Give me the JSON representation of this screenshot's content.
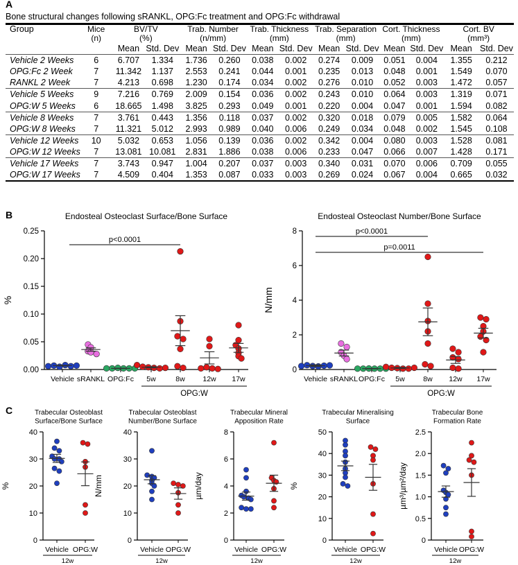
{
  "panel_labels": {
    "a": "A",
    "b": "B",
    "c": "C"
  },
  "table": {
    "caption": "Bone structural changes following sRANKL, OPG:Fc treatment and OPG:Fc withdrawal",
    "headers": {
      "group": "Group",
      "mice": "Mice",
      "mice_unit": "(n)",
      "bvtv": "BV/TV",
      "bvtv_unit": "(%)",
      "tbn": "Trab. Number",
      "tbn_unit": "(n/mm)",
      "tbth": "Trab. Thickness",
      "tbth_unit": "(mm)",
      "tbsp": "Trab. Separation",
      "tbsp_unit": "(mm)",
      "ctth": "Cort. Thickness",
      "ctth_unit": "(mm)",
      "ctbv": "Cort. BV",
      "ctbv_unit": "(mm³)"
    },
    "sub_mean": "Mean",
    "sub_sd": "Std. Dev",
    "rows": [
      {
        "group": "Vehicle 2 Weeks",
        "n": "6",
        "v": [
          "6.707",
          "1.334",
          "1.736",
          "0.260",
          "0.038",
          "0.002",
          "0.274",
          "0.009",
          "0.051",
          "0.004",
          "1.355",
          "0.212"
        ]
      },
      {
        "group": "OPG:Fc 2 Week",
        "n": "7",
        "v": [
          "11.342",
          "1.137",
          "2.553",
          "0.241",
          "0.044",
          "0.001",
          "0.235",
          "0.013",
          "0.048",
          "0.001",
          "1.549",
          "0.070"
        ]
      },
      {
        "group": "RANKL 2 Week",
        "n": "7",
        "v": [
          "4.213",
          "0.698",
          "1.230",
          "0.174",
          "0.034",
          "0.002",
          "0.276",
          "0.010",
          "0.052",
          "0.003",
          "1.472",
          "0.057"
        ]
      },
      {
        "group": "Vehicle 5 Weeks",
        "n": "9",
        "v": [
          "7.216",
          "0.769",
          "2.009",
          "0.154",
          "0.036",
          "0.002",
          "0.243",
          "0.010",
          "0.064",
          "0.003",
          "1.319",
          "0.071"
        ]
      },
      {
        "group": "OPG:W 5 Weeks",
        "n": "6",
        "v": [
          "18.665",
          "1.498",
          "3.825",
          "0.293",
          "0.049",
          "0.001",
          "0.220",
          "0.004",
          "0.047",
          "0.001",
          "1.594",
          "0.082"
        ]
      },
      {
        "group": "Vehicle 8 Weeks",
        "n": "7",
        "v": [
          "3.761",
          "0.443",
          "1.356",
          "0.118",
          "0.037",
          "0.002",
          "0.320",
          "0.018",
          "0.079",
          "0.005",
          "1.582",
          "0.064"
        ]
      },
      {
        "group": "OPG:W 8 Weeks",
        "n": "7",
        "v": [
          "11.321",
          "5.012",
          "2.993",
          "0.989",
          "0.040",
          "0.006",
          "0.249",
          "0.034",
          "0.048",
          "0.002",
          "1.545",
          "0.108"
        ]
      },
      {
        "group": "Vehicle 12 Weeks",
        "n": "10",
        "v": [
          "5.032",
          "0.653",
          "1.056",
          "0.139",
          "0.036",
          "0.002",
          "0.342",
          "0.004",
          "0.080",
          "0.003",
          "1.528",
          "0.081"
        ]
      },
      {
        "group": "OPG:W 12 Weeks",
        "n": "7",
        "v": [
          "13.081",
          "10.081",
          "2.831",
          "1.886",
          "0.038",
          "0.006",
          "0.233",
          "0.047",
          "0.066",
          "0.007",
          "1.428",
          "0.171"
        ]
      },
      {
        "group": "Vehicle 17 Weeks",
        "n": "7",
        "v": [
          "3.743",
          "0.947",
          "1.004",
          "0.207",
          "0.037",
          "0.003",
          "0.340",
          "0.031",
          "0.070",
          "0.006",
          "0.709",
          "0.055"
        ]
      },
      {
        "group": "OPG:W 17 Weeks",
        "n": "7",
        "v": [
          "4.509",
          "0.404",
          "1.353",
          "0.087",
          "0.033",
          "0.003",
          "0.269",
          "0.024",
          "0.067",
          "0.004",
          "0.665",
          "0.032"
        ]
      }
    ]
  },
  "chart_data": [
    {
      "id": "b1",
      "type": "scatter",
      "title": "Endosteal Osteoclast Surface/Bone Surface",
      "ylabel": "%",
      "ylim": [
        0,
        0.25
      ],
      "yticks": [
        "0.00",
        "0.05",
        "0.10",
        "0.15",
        "0.20",
        "0.25"
      ],
      "yticks_val": [
        0,
        0.05,
        0.1,
        0.15,
        0.2,
        0.25
      ],
      "categories": [
        "Vehicle",
        "sRANKL",
        "OPG:Fc",
        "5w",
        "8w",
        "12w",
        "17w"
      ],
      "group_label": "OPG:W",
      "colors": [
        "#1f3fbf",
        "#e86fe0",
        "#2aa862",
        "#e01818",
        "#e01818",
        "#e01818",
        "#e01818"
      ],
      "groups": [
        {
          "pts": [
            0.006,
            0.007,
            0.005,
            0.008,
            0.006,
            0.007
          ],
          "mean": 0.007,
          "sem": 0.0005
        },
        {
          "pts": [
            0.045,
            0.04,
            0.033,
            0.031,
            0.028
          ],
          "mean": 0.036,
          "sem": 0.003
        },
        {
          "pts": [
            0.002,
            0.002,
            0.003,
            0.002,
            0.002,
            0.002
          ],
          "mean": 0.002,
          "sem": 0.0003
        },
        {
          "pts": [
            0.008,
            0.005,
            0.004,
            0.003,
            0.002,
            0.003
          ],
          "mean": 0.004,
          "sem": 0.001
        },
        {
          "pts": [
            0.213,
            0.087,
            0.06,
            0.055,
            0.037,
            0.006,
            0.003
          ],
          "mean": 0.07,
          "sem": 0.027
        },
        {
          "pts": [
            0.055,
            0.042,
            0.002,
            0.004,
            0.002,
            0.001
          ],
          "mean": 0.021,
          "sem": 0.011
        },
        {
          "pts": [
            0.08,
            0.053,
            0.044,
            0.038,
            0.03,
            0.024,
            0.02
          ],
          "mean": 0.039,
          "sem": 0.008
        }
      ],
      "sig": [
        {
          "from": 0,
          "to": 4,
          "label": "p<0.0001"
        }
      ]
    },
    {
      "id": "b2",
      "type": "scatter",
      "title": "Endosteal Osteoclast Number/Bone Surface",
      "ylabel": "N/mm",
      "ylim": [
        0,
        8
      ],
      "yticks": [
        "0",
        "2",
        "4",
        "6",
        "8"
      ],
      "yticks_val": [
        0,
        2,
        4,
        6,
        8
      ],
      "categories": [
        "Vehicle",
        "sRANKL",
        "OPG:Fc",
        "5w",
        "8w",
        "12w",
        "17w"
      ],
      "group_label": "OPG:W",
      "colors": [
        "#1f3fbf",
        "#e86fe0",
        "#2aa862",
        "#e01818",
        "#e01818",
        "#e01818",
        "#e01818"
      ],
      "groups": [
        {
          "pts": [
            0.2,
            0.25,
            0.2,
            0.18,
            0.22,
            0.24
          ],
          "mean": 0.22,
          "sem": 0.05
        },
        {
          "pts": [
            1.5,
            1.3,
            1.0,
            0.8,
            0.6
          ],
          "mean": 0.95,
          "sem": 0.17
        },
        {
          "pts": [
            0.05,
            0.05,
            0.06,
            0.05,
            0.05,
            0.05
          ],
          "mean": 0.05,
          "sem": 0.01
        },
        {
          "pts": [
            0.15,
            0.1,
            0.08,
            0.05,
            0.05,
            0.1
          ],
          "mean": 0.09,
          "sem": 0.03
        },
        {
          "pts": [
            6.5,
            3.8,
            2.8,
            2.2,
            1.5,
            0.3,
            0.2
          ],
          "mean": 2.75,
          "sem": 0.8
        },
        {
          "pts": [
            1.2,
            1.0,
            0.7,
            0.6,
            0.1,
            0.05
          ],
          "mean": 0.55,
          "sem": 0.2
        },
        {
          "pts": [
            3.0,
            2.9,
            2.5,
            2.2,
            1.9,
            1.7,
            1.0
          ],
          "mean": 2.1,
          "sem": 0.28
        }
      ],
      "sig": [
        {
          "from": 0,
          "to": 4,
          "label": "p<0.0001"
        },
        {
          "from": 0,
          "to": 6,
          "label": "p=0.0011"
        }
      ]
    },
    {
      "id": "c1",
      "type": "scatter",
      "title": [
        "Trabecular Osteoblast",
        "Surface/Bone Surface"
      ],
      "ylabel": "%",
      "ylim": [
        0,
        40
      ],
      "yticks": [
        "0",
        "10",
        "20",
        "30",
        "40"
      ],
      "yticks_val": [
        0,
        10,
        20,
        30,
        40
      ],
      "categories": [
        "Vehicle",
        "OPG:W"
      ],
      "bracket_label": "12w",
      "colors": [
        "#1f3fbf",
        "#e01818"
      ],
      "groups": [
        {
          "pts": [
            36.5,
            34,
            33,
            31,
            30,
            30,
            29,
            26.5,
            25.5,
            21
          ],
          "mean": 30.2,
          "sem": 1.5
        },
        {
          "pts": [
            36,
            35.5,
            29,
            27,
            13,
            10
          ],
          "mean": 24.5,
          "sem": 4.4
        }
      ]
    },
    {
      "id": "c2",
      "type": "scatter",
      "title": [
        "Trabecular Osteoblast",
        "Number/Bone Surface"
      ],
      "ylabel": "N/mm",
      "ylim": [
        0,
        40
      ],
      "yticks": [
        "0",
        "10",
        "20",
        "30",
        "40"
      ],
      "yticks_val": [
        0,
        10,
        20,
        30,
        40
      ],
      "categories": [
        "Vehicle",
        "OPG:W"
      ],
      "bracket_label": "12w",
      "colors": [
        "#1f3fbf",
        "#e01818"
      ],
      "groups": [
        {
          "pts": [
            33,
            24,
            23.5,
            23,
            22,
            21,
            20,
            18,
            15
          ],
          "mean": 22.3,
          "sem": 1.5
        },
        {
          "pts": [
            21,
            20.5,
            20,
            17.5,
            13,
            10
          ],
          "mean": 17.2,
          "sem": 2.1
        }
      ]
    },
    {
      "id": "c3",
      "type": "scatter",
      "title": [
        "Trabecular Mineral",
        "Apposition Rate"
      ],
      "ylabel": "µm/day",
      "ylim": [
        0,
        8
      ],
      "yticks": [
        "0",
        "2",
        "4",
        "6",
        "8"
      ],
      "yticks_val": [
        0,
        2,
        4,
        6,
        8
      ],
      "categories": [
        "Vehicle",
        "OPG:W"
      ],
      "bracket_label": "12w",
      "colors": [
        "#1f3fbf",
        "#e01818"
      ],
      "groups": [
        {
          "pts": [
            5.2,
            4.6,
            3.6,
            3.3,
            3.2,
            3.1,
            3.0,
            2.4,
            2.3,
            2.3
          ],
          "mean": 3.25,
          "sem": 0.3
        },
        {
          "pts": [
            7.2,
            4.6,
            4.4,
            4.3,
            3.8,
            2.9,
            2.4
          ],
          "mean": 4.2,
          "sem": 0.6
        }
      ]
    },
    {
      "id": "c4",
      "type": "scatter",
      "title": [
        "Trabecular Mineralising",
        "Surface"
      ],
      "ylabel": "%",
      "ylim": [
        0,
        50
      ],
      "yticks": [
        "0",
        "10",
        "20",
        "30",
        "40",
        "50"
      ],
      "yticks_val": [
        0,
        10,
        20,
        30,
        40,
        50
      ],
      "categories": [
        "Vehicle",
        "OPG:W"
      ],
      "bracket_label": "12w",
      "colors": [
        "#1f3fbf",
        "#e01818"
      ],
      "groups": [
        {
          "pts": [
            46,
            44,
            41,
            39,
            36,
            33,
            31,
            29,
            26,
            25
          ],
          "mean": 34.3,
          "sem": 2.2
        },
        {
          "pts": [
            43,
            42,
            39,
            37,
            26,
            12,
            3
          ],
          "mean": 29,
          "sem": 6
        }
      ]
    },
    {
      "id": "c5",
      "type": "scatter",
      "title": [
        "Trabecular Bone",
        "Formation Rate"
      ],
      "ylabel": "µm³/µm²/day",
      "ylim": [
        0,
        2.5
      ],
      "yticks": [
        "0",
        "0.5",
        "1.0",
        "1.5",
        "2.0",
        "2.5"
      ],
      "yticks_val": [
        0,
        0.5,
        1.0,
        1.5,
        2.0,
        2.5
      ],
      "categories": [
        "Vehicle",
        "OPG:W"
      ],
      "bracket_label": "12w",
      "colors": [
        "#1f3fbf",
        "#e01818"
      ],
      "groups": [
        {
          "pts": [
            1.72,
            1.65,
            1.55,
            1.15,
            1.1,
            1.05,
            0.95,
            0.75,
            0.6
          ],
          "mean": 1.12,
          "sem": 0.13
        },
        {
          "pts": [
            2.25,
            1.95,
            1.85,
            1.8,
            1.5,
            0.2,
            0.08
          ],
          "mean": 1.33,
          "sem": 0.32
        }
      ]
    }
  ]
}
